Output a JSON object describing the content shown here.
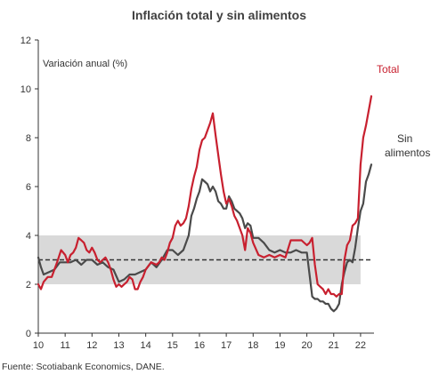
{
  "chart_data": {
    "type": "line",
    "title": "Inflación total y sin alimentos",
    "ylabel": "Variación anual (%)",
    "xlabel": "",
    "source": "Fuente: Scotiabank Economics, DANE.",
    "xlim": [
      2010,
      2022.5
    ],
    "ylim": [
      0,
      12
    ],
    "x_ticks": [
      "10",
      "11",
      "12",
      "13",
      "14",
      "15",
      "16",
      "17",
      "18",
      "19",
      "20",
      "21",
      "22"
    ],
    "y_ticks": [
      "0",
      "2",
      "4",
      "6",
      "8",
      "10",
      "12"
    ],
    "target_band": [
      2,
      4
    ],
    "target_line": 3,
    "grid": false,
    "series": [
      {
        "name": "Total",
        "color": "#c8202f",
        "x": [
          2010.0,
          2010.1,
          2010.2,
          2010.35,
          2010.5,
          2010.7,
          2010.85,
          2011.0,
          2011.1,
          2011.2,
          2011.3,
          2011.4,
          2011.5,
          2011.6,
          2011.7,
          2011.8,
          2011.9,
          2012.0,
          2012.1,
          2012.2,
          2012.3,
          2012.4,
          2012.5,
          2012.6,
          2012.7,
          2012.8,
          2012.9,
          2013.0,
          2013.1,
          2013.2,
          2013.3,
          2013.4,
          2013.5,
          2013.6,
          2013.7,
          2013.8,
          2013.9,
          2014.0,
          2014.2,
          2014.4,
          2014.5,
          2014.6,
          2014.7,
          2014.8,
          2014.9,
          2015.0,
          2015.1,
          2015.2,
          2015.3,
          2015.4,
          2015.5,
          2015.6,
          2015.7,
          2015.8,
          2015.9,
          2016.0,
          2016.1,
          2016.2,
          2016.3,
          2016.4,
          2016.5,
          2016.6,
          2016.7,
          2016.8,
          2016.9,
          2017.0,
          2017.1,
          2017.2,
          2017.3,
          2017.4,
          2017.5,
          2017.6,
          2017.7,
          2017.8,
          2017.9,
          2018.0,
          2018.2,
          2018.4,
          2018.6,
          2018.8,
          2019.0,
          2019.2,
          2019.4,
          2019.6,
          2019.8,
          2020.0,
          2020.1,
          2020.2,
          2020.3,
          2020.4,
          2020.5,
          2020.6,
          2020.7,
          2020.8,
          2020.9,
          2021.0,
          2021.1,
          2021.2,
          2021.3,
          2021.4,
          2021.5,
          2021.6,
          2021.7,
          2021.8,
          2021.9,
          2022.0,
          2022.1,
          2022.2,
          2022.3,
          2022.4
        ],
        "values": [
          2.0,
          1.8,
          2.1,
          2.3,
          2.3,
          2.9,
          3.4,
          3.2,
          2.9,
          3.2,
          3.3,
          3.5,
          3.9,
          3.8,
          3.7,
          3.4,
          3.3,
          3.5,
          3.3,
          3.0,
          2.9,
          3.0,
          3.1,
          2.9,
          2.6,
          2.2,
          1.9,
          2.0,
          1.9,
          2.0,
          2.1,
          2.3,
          2.2,
          1.8,
          1.8,
          2.1,
          2.3,
          2.6,
          2.9,
          2.8,
          2.9,
          3.1,
          3.0,
          3.3,
          3.7,
          3.9,
          4.4,
          4.6,
          4.4,
          4.5,
          4.7,
          5.2,
          5.9,
          6.4,
          6.8,
          7.5,
          7.9,
          8.0,
          8.3,
          8.6,
          9.0,
          8.1,
          7.3,
          6.5,
          5.8,
          5.3,
          5.5,
          5.2,
          4.8,
          4.6,
          4.3,
          4.0,
          3.4,
          4.3,
          4.1,
          3.7,
          3.2,
          3.1,
          3.2,
          3.1,
          3.2,
          3.1,
          3.8,
          3.8,
          3.8,
          3.6,
          3.7,
          3.9,
          2.8,
          2.0,
          1.9,
          1.8,
          1.6,
          1.8,
          1.6,
          1.6,
          1.5,
          1.6,
          1.6,
          3.0,
          3.6,
          3.8,
          4.4,
          4.5,
          4.7,
          6.9,
          8.0,
          8.5,
          9.1,
          9.7
        ]
      },
      {
        "name": "Sin alimentos",
        "color": "#4a4a4a",
        "x": [
          2010.0,
          2010.1,
          2010.2,
          2010.4,
          2010.6,
          2010.8,
          2011.0,
          2011.2,
          2011.4,
          2011.6,
          2011.8,
          2012.0,
          2012.2,
          2012.4,
          2012.6,
          2012.8,
          2013.0,
          2013.2,
          2013.4,
          2013.6,
          2013.8,
          2014.0,
          2014.2,
          2014.4,
          2014.6,
          2014.8,
          2015.0,
          2015.2,
          2015.4,
          2015.6,
          2015.7,
          2015.8,
          2015.9,
          2016.0,
          2016.1,
          2016.2,
          2016.3,
          2016.4,
          2016.5,
          2016.6,
          2016.7,
          2016.8,
          2016.9,
          2017.0,
          2017.1,
          2017.2,
          2017.3,
          2017.4,
          2017.5,
          2017.6,
          2017.7,
          2017.8,
          2017.9,
          2018.0,
          2018.2,
          2018.4,
          2018.6,
          2018.8,
          2019.0,
          2019.2,
          2019.4,
          2019.6,
          2019.8,
          2020.0,
          2020.1,
          2020.2,
          2020.3,
          2020.4,
          2020.5,
          2020.6,
          2020.7,
          2020.8,
          2020.9,
          2021.0,
          2021.1,
          2021.2,
          2021.3,
          2021.4,
          2021.5,
          2021.6,
          2021.7,
          2021.8,
          2021.9,
          2022.0,
          2022.1,
          2022.2,
          2022.3,
          2022.4
        ],
        "values": [
          3.1,
          2.7,
          2.4,
          2.5,
          2.6,
          2.9,
          2.9,
          2.9,
          3.0,
          2.8,
          3.0,
          3.0,
          2.8,
          2.9,
          2.7,
          2.6,
          2.1,
          2.2,
          2.4,
          2.4,
          2.5,
          2.6,
          2.9,
          2.7,
          3.0,
          3.4,
          3.4,
          3.2,
          3.4,
          4.0,
          4.8,
          5.1,
          5.5,
          5.8,
          6.3,
          6.2,
          6.1,
          5.8,
          6.0,
          5.8,
          5.4,
          5.3,
          5.1,
          5.1,
          5.6,
          5.4,
          5.1,
          5.0,
          4.9,
          4.7,
          4.3,
          4.5,
          4.4,
          3.9,
          3.9,
          3.7,
          3.4,
          3.3,
          3.4,
          3.3,
          3.3,
          3.4,
          3.3,
          3.3,
          2.4,
          1.5,
          1.4,
          1.4,
          1.3,
          1.3,
          1.2,
          1.2,
          1.0,
          0.9,
          1.0,
          1.2,
          2.0,
          2.5,
          2.9,
          3.0,
          2.9,
          3.5,
          4.3,
          5.0,
          5.3,
          6.2,
          6.5,
          6.9
        ]
      }
    ],
    "legend": [
      {
        "label_line1": "Total",
        "label_line2": "",
        "color": "#c8202f"
      },
      {
        "label_line1": "Sin",
        "label_line2": "alimentos",
        "color": "#333333"
      }
    ]
  }
}
